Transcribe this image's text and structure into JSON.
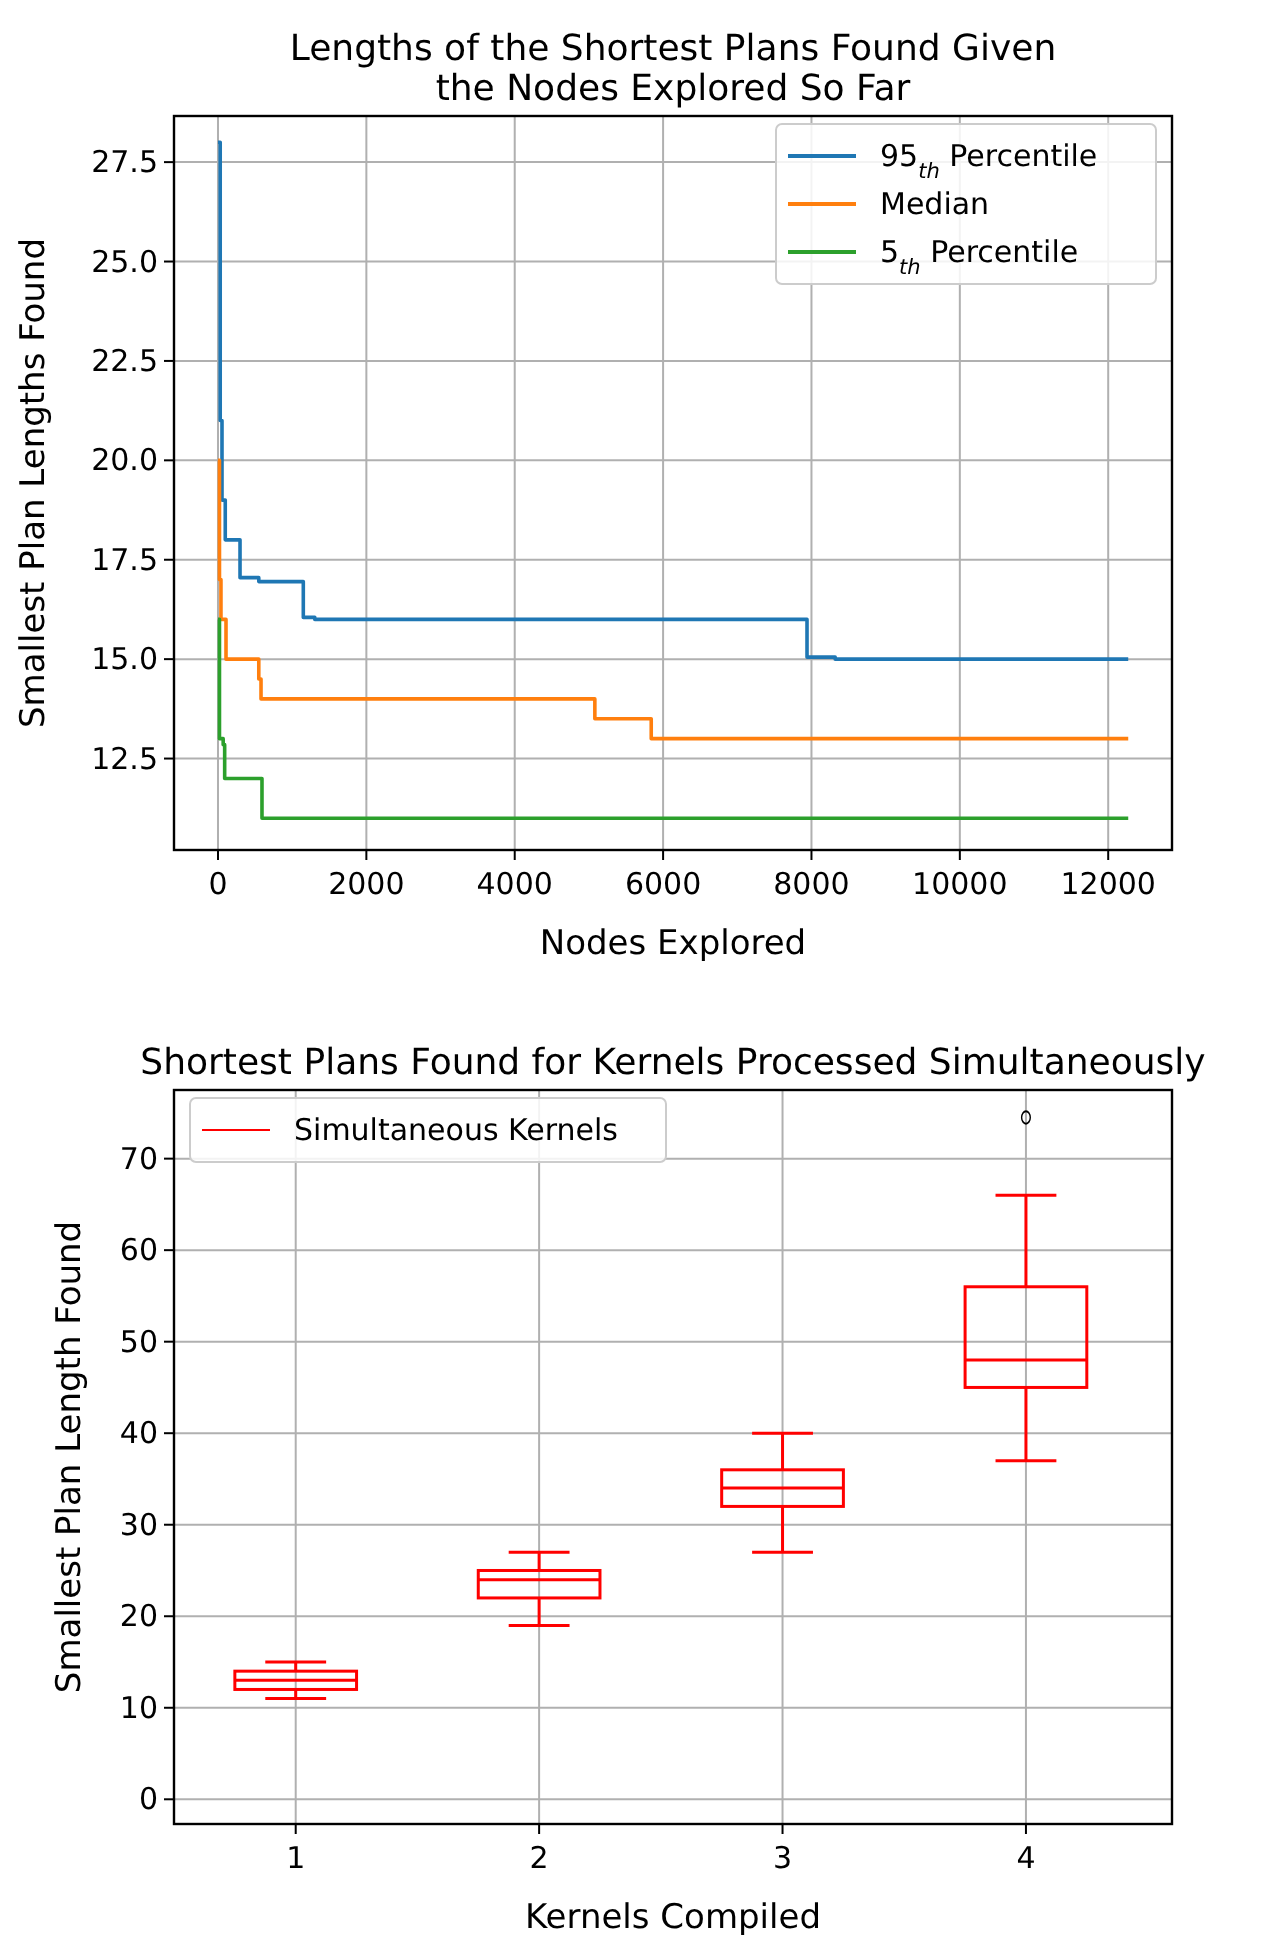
{
  "chart_data": [
    {
      "type": "step",
      "title": "Lengths of the Shortest Plans Found Given\nthe Nodes Explored So Far",
      "xlabel": "Nodes Explored",
      "ylabel": "Smallest Plan Lengths Found",
      "xlim": [
        -593,
        12860
      ],
      "ylim": [
        10.2,
        28.66
      ],
      "xticks": [
        0,
        2000,
        4000,
        6000,
        8000,
        10000,
        12000
      ],
      "yticks": [
        12.5,
        {
          "value": 15,
          "label": "15.0"
        },
        17.5,
        {
          "value": 20,
          "label": "20.0"
        },
        22.5,
        {
          "value": 25,
          "label": "25.0"
        },
        27.5
      ],
      "grid": true,
      "legend": "top right",
      "series": [
        {
          "name": "95$_{th}$ Percentile",
          "color": "#1f77b4",
          "x": [
            0,
            30,
            54,
            98,
            297,
            550,
            1150,
            1305,
            7940,
            8320,
            12270
          ],
          "values": [
            28,
            21,
            19,
            18,
            17.05,
            16.95,
            16.05,
            16,
            15.05,
            15,
            15
          ]
        },
        {
          "name": "Median",
          "color": "#ff7f0e",
          "x": [
            0,
            20,
            40,
            108,
            550,
            580,
            5080,
            5840,
            12270
          ],
          "values": [
            20,
            17,
            16,
            15,
            14.5,
            14,
            13.5,
            13,
            13
          ]
        },
        {
          "name": "5$_{th}$ Percentile",
          "color": "#2ca02c",
          "x": [
            0,
            20,
            70,
            90,
            593,
            12270
          ],
          "values": [
            16,
            13,
            12.85,
            12,
            11,
            11
          ]
        }
      ]
    },
    {
      "type": "box",
      "title": "Shortest Plans Found for Kernels Processed Simultaneously",
      "xlabel": "Kernels Compiled",
      "ylabel": "Smallest Plan Length Found",
      "categories": [
        "1",
        "2",
        "3",
        "4"
      ],
      "ylim": [
        -2.7,
        77.5
      ],
      "yticks": [
        0,
        10,
        20,
        30,
        40,
        50,
        60,
        70
      ],
      "grid": true,
      "legend": "top left",
      "series": [
        {
          "name": "Simultaneous Kernels",
          "color": "#ff0000",
          "boxes": [
            {
              "low": 11,
              "q1": 12,
              "median": 13,
              "q3": 14,
              "high": 15
            },
            {
              "low": 19,
              "q1": 22,
              "median": 24,
              "q3": 25,
              "high": 27
            },
            {
              "low": 27,
              "q1": 32,
              "median": 34,
              "q3": 36,
              "high": 40
            },
            {
              "low": 37,
              "q1": 45,
              "median": 48,
              "q3": 56,
              "high": 66,
              "outliers": [
                74.5
              ]
            }
          ]
        }
      ]
    }
  ]
}
